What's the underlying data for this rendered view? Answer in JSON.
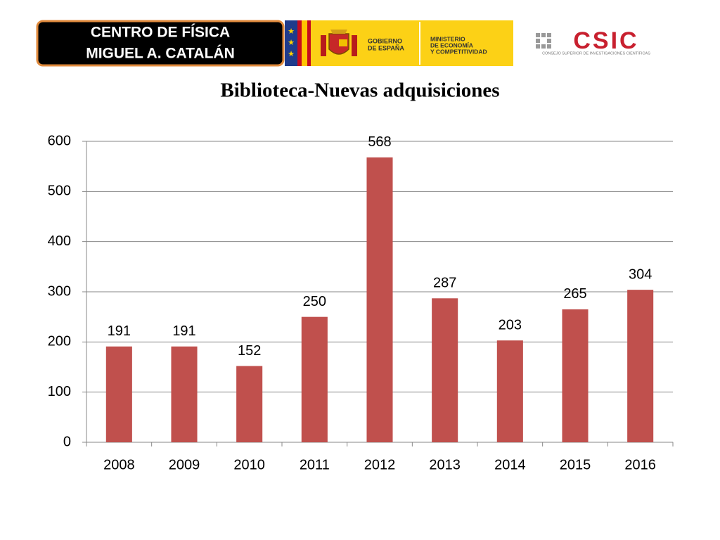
{
  "header": {
    "center_lines": [
      "CENTRO DE FÍSICA",
      "MIGUEL A. CATALÁN"
    ],
    "gov_lines": [
      "GOBIERNO",
      "DE ESPAÑA"
    ],
    "ministry_lines": [
      "MINISTERIO",
      "DE ECONOMÍA",
      "Y COMPETITIVIDAD"
    ],
    "csic": "CSIC",
    "csic_sub": "CONSEJO SUPERIOR DE INVESTIGACIONES CIENTÍFICAS"
  },
  "chart_data": {
    "type": "bar",
    "title": "Biblioteca-Nuevas adquisiciones",
    "categories": [
      "2008",
      "2009",
      "2010",
      "2011",
      "2012",
      "2013",
      "2014",
      "2015",
      "2016"
    ],
    "values": [
      191,
      191,
      152,
      250,
      568,
      287,
      203,
      265,
      304
    ],
    "color": "#c0504d",
    "ylim": [
      0,
      600
    ],
    "yticks": [
      0,
      100,
      200,
      300,
      400,
      500,
      600
    ],
    "grid": true
  }
}
